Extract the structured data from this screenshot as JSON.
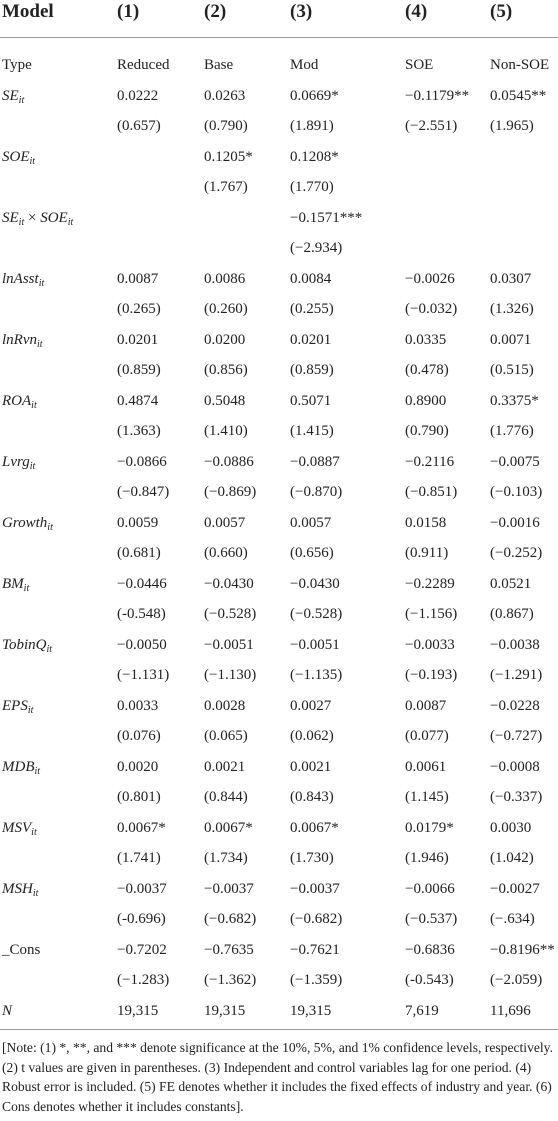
{
  "table": {
    "header": [
      "Model",
      "(1)",
      "(2)",
      "(3)",
      "(4)",
      "(5)"
    ],
    "rows": [
      {
        "label": [
          {
            "text": "Type"
          }
        ],
        "cells": [
          "Reduced",
          "Base",
          "Mod",
          "SOE",
          "Non-SOE"
        ]
      },
      {
        "label": [
          {
            "text": "SE",
            "sub": "it"
          }
        ],
        "cells": [
          "0.0222",
          "0.0263",
          "0.0669*",
          "−0.1179**",
          "0.0545**"
        ]
      },
      {
        "label": null,
        "cells": [
          "(0.657)",
          "(0.790)",
          "(1.891)",
          "(−2.551)",
          "(1.965)"
        ]
      },
      {
        "label": [
          {
            "text": "SOE",
            "sub": "it"
          }
        ],
        "cells": [
          null,
          "0.1205*",
          "0.1208*",
          null,
          null
        ]
      },
      {
        "label": null,
        "cells": [
          null,
          "(1.767)",
          "(1.770)",
          null,
          null
        ]
      },
      {
        "label": [
          {
            "text": "SE",
            "sub": "it"
          },
          {
            "text": " × "
          },
          {
            "text": "SOE",
            "sub": "it"
          }
        ],
        "cells": [
          null,
          null,
          "−0.1571***",
          null,
          null
        ]
      },
      {
        "label": null,
        "cells": [
          null,
          null,
          "(−2.934)",
          null,
          null
        ]
      },
      {
        "label": [
          {
            "text": "lnAsst",
            "sub": "it"
          }
        ],
        "cells": [
          "0.0087",
          "0.0086",
          "0.0084",
          "−0.0026",
          "0.0307"
        ]
      },
      {
        "label": null,
        "cells": [
          "(0.265)",
          "(0.260)",
          "(0.255)",
          "(−0.032)",
          "(1.326)"
        ]
      },
      {
        "label": [
          {
            "text": "lnRvn",
            "sub": "it"
          }
        ],
        "cells": [
          "0.0201",
          "0.0200",
          "0.0201",
          "0.0335",
          "0.0071"
        ]
      },
      {
        "label": null,
        "cells": [
          "(0.859)",
          "(0.856)",
          "(0.859)",
          "(0.478)",
          "(0.515)"
        ]
      },
      {
        "label": [
          {
            "text": "ROA",
            "sub": "it"
          }
        ],
        "cells": [
          "0.4874",
          "0.5048",
          "0.5071",
          "0.8900",
          "0.3375*"
        ]
      },
      {
        "label": null,
        "cells": [
          "(1.363)",
          "(1.410)",
          "(1.415)",
          "(0.790)",
          "(1.776)"
        ]
      },
      {
        "label": [
          {
            "text": "Lvrg",
            "sub": "it"
          }
        ],
        "cells": [
          "−0.0866",
          "−0.0886",
          "−0.0887",
          "−0.2116",
          "−0.0075"
        ]
      },
      {
        "label": null,
        "cells": [
          "(−0.847)",
          "(−0.869)",
          "(−0.870)",
          "(−0.851)",
          "(−0.103)"
        ]
      },
      {
        "label": [
          {
            "text": "Growth",
            "sub": "it"
          }
        ],
        "cells": [
          "0.0059",
          "0.0057",
          "0.0057",
          "0.0158",
          "−0.0016"
        ]
      },
      {
        "label": null,
        "cells": [
          "(0.681)",
          "(0.660)",
          "(0.656)",
          "(0.911)",
          "(−0.252)"
        ]
      },
      {
        "label": [
          {
            "text": "BM",
            "sub": "it"
          }
        ],
        "cells": [
          "−0.0446",
          "−0.0430",
          "−0.0430",
          "−0.2289",
          "0.0521"
        ]
      },
      {
        "label": null,
        "cells": [
          "(-0.548)",
          "(−0.528)",
          "(−0.528)",
          "(−1.156)",
          "(0.867)"
        ]
      },
      {
        "label": [
          {
            "text": "TobinQ",
            "sub": "it"
          }
        ],
        "cells": [
          "−0.0050",
          "−0.0051",
          "−0.0051",
          "−0.0033",
          "−0.0038"
        ]
      },
      {
        "label": null,
        "cells": [
          "(−1.131)",
          "(−1.130)",
          "(−1.135)",
          "(−0.193)",
          "(−1.291)"
        ]
      },
      {
        "label": [
          {
            "text": "EPS",
            "sub": "it"
          }
        ],
        "cells": [
          "0.0033",
          "0.0028",
          "0.0027",
          "0.0087",
          "−0.0228"
        ]
      },
      {
        "label": null,
        "cells": [
          "(0.076)",
          "(0.065)",
          "(0.062)",
          "(0.077)",
          "(−0.727)"
        ]
      },
      {
        "label": [
          {
            "text": "MDB",
            "sub": "it"
          }
        ],
        "cells": [
          "0.0020",
          "0.0021",
          "0.0021",
          "0.0061",
          "−0.0008"
        ]
      },
      {
        "label": null,
        "cells": [
          "(0.801)",
          "(0.844)",
          "(0.843)",
          "(1.145)",
          "(−0.337)"
        ]
      },
      {
        "label": [
          {
            "text": "MSV",
            "sub": "it"
          }
        ],
        "cells": [
          "0.0067*",
          "0.0067*",
          "0.0067*",
          "0.0179*",
          "0.0030"
        ]
      },
      {
        "label": null,
        "cells": [
          "(1.741)",
          "(1.734)",
          "(1.730)",
          "(1.946)",
          "(1.042)"
        ]
      },
      {
        "label": [
          {
            "text": "MSH",
            "sub": "it"
          }
        ],
        "cells": [
          "−0.0037",
          "−0.0037",
          "−0.0037",
          "−0.0066",
          "−0.0027"
        ]
      },
      {
        "label": null,
        "cells": [
          "(-0.696)",
          "(−0.682)",
          "(−0.682)",
          "(−0.537)",
          "(−.634)"
        ]
      },
      {
        "label": [
          {
            "text": "_Cons"
          }
        ],
        "cells": [
          "−0.7202",
          "−0.7635",
          "−0.7621",
          "−0.6836",
          "−0.8196**"
        ]
      },
      {
        "label": null,
        "cells": [
          "(−1.283)",
          "(−1.362)",
          "(−1.359)",
          "(-0.543)",
          "(−2.059)"
        ]
      },
      {
        "label": [
          {
            "text": "N"
          }
        ],
        "cells": [
          "19,315",
          "19,315",
          "19,315",
          "7,619",
          "11,696"
        ]
      }
    ],
    "note": "[Note: (1) *, **, and *** denote significance at the 10%, 5%, and 1% confidence levels, respectively. (2) t values are given in parentheses. (3) Independent and control variables lag for one period. (4) Robust error is included. (5) FE denotes whether it includes the fixed effects of industry and year. (6) Cons denotes whether it includes constants]."
  }
}
